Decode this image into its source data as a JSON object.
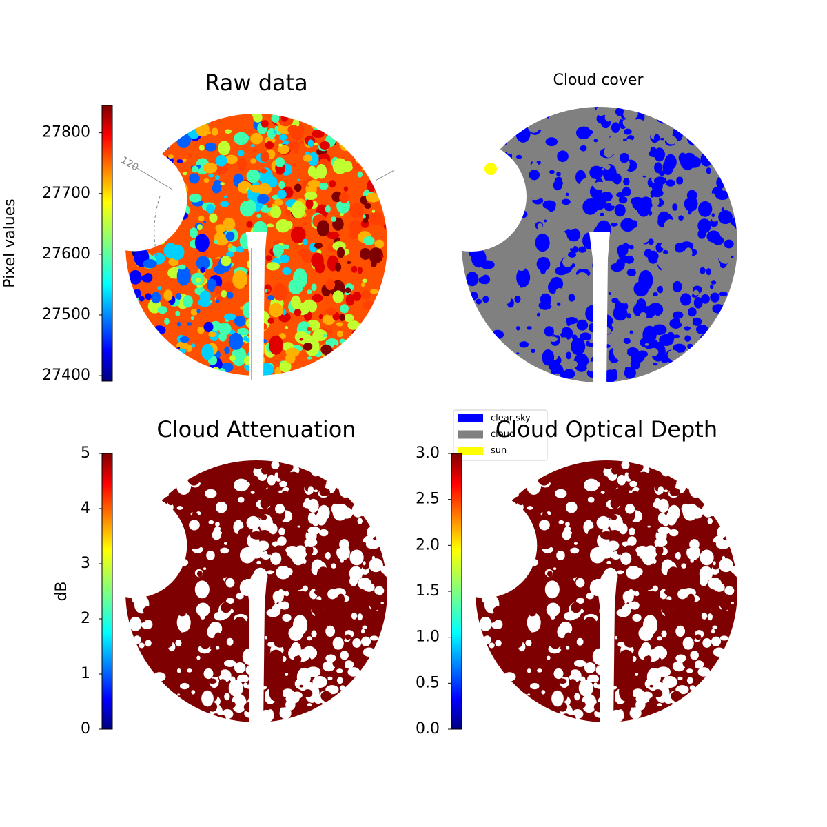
{
  "chart_data": [
    {
      "type": "image",
      "title": "Raw data",
      "colorbar_label": "Pixel values",
      "ylim": [
        27391,
        27845
      ],
      "yticks": [
        27400,
        27500,
        27600,
        27700,
        27800
      ],
      "annotation": "120"
    },
    {
      "type": "image",
      "title": "Cloud cover",
      "legend": [
        {
          "name": "clear sky",
          "color": "#0000ff"
        },
        {
          "name": "cloud",
          "color": "#808080"
        },
        {
          "name": "sun",
          "color": "#ffff00"
        }
      ]
    },
    {
      "type": "image",
      "title": "Cloud Attenuation",
      "colorbar_label": "dB",
      "ylim": [
        0,
        5
      ],
      "yticks": [
        0,
        1,
        2,
        3,
        4,
        5
      ]
    },
    {
      "type": "image",
      "title": "Cloud Optical Depth",
      "ylim": [
        0,
        3
      ],
      "yticks": [
        {
          "value": 0,
          "label": "0.0"
        },
        {
          "value": 0.5,
          "label": "0.5"
        },
        {
          "value": 1,
          "label": "1.0"
        },
        {
          "value": 1.5,
          "label": "1.5"
        },
        {
          "value": 2,
          "label": "2.0"
        },
        {
          "value": 2.5,
          "label": "2.5"
        },
        {
          "value": 3,
          "label": "3.0"
        }
      ]
    }
  ]
}
